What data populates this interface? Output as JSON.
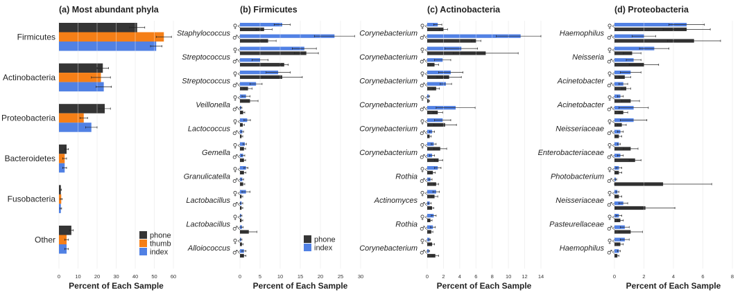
{
  "colors": {
    "phone": "#353535",
    "thumb": "#f57f17",
    "index": "#5181e4"
  },
  "sex_symbols": {
    "female": "♀",
    "male": "♂"
  },
  "chart_data": [
    {
      "type": "bar",
      "title": "(a) Most abundant phyla",
      "xlabel": "Percent of Each Sample",
      "xlim": [
        0,
        60
      ],
      "xticks": [
        0,
        10,
        20,
        30,
        40,
        50,
        60
      ],
      "legend": {
        "placement": "bottom-right",
        "entries": [
          "phone",
          "thumb",
          "index"
        ]
      },
      "grid": true,
      "categories": [
        "Firmicutes",
        "Actinobacteria",
        "Proteobacteria",
        "Bacteroidetes",
        "Fusobacteria",
        "Other"
      ],
      "series": [
        {
          "name": "phone",
          "values": [
            41,
            23,
            24,
            4,
            1,
            6.5
          ],
          "errors": [
            4,
            3,
            3,
            1,
            0.3,
            1
          ]
        },
        {
          "name": "thumb",
          "values": [
            55,
            22,
            13,
            3,
            1.2,
            4
          ],
          "errors": [
            4,
            5,
            2,
            1,
            0.5,
            1
          ]
        },
        {
          "name": "index",
          "values": [
            51,
            23.5,
            17,
            3,
            1,
            4
          ],
          "errors": [
            3,
            4,
            3,
            1,
            0.4,
            1
          ]
        }
      ]
    },
    {
      "type": "bar",
      "title": "(b) Firmicutes",
      "xlabel": "Percent of Each Sample",
      "xlim": [
        0,
        30
      ],
      "xticks": [
        0,
        5,
        10,
        15,
        20,
        25,
        30
      ],
      "legend": {
        "placement": "bottom-right",
        "entries": [
          "phone",
          "index"
        ]
      },
      "grid": true,
      "categories": [
        "Staphylococcus",
        "Streptococcus",
        "Streptococcus",
        "Veillonella",
        "Lactococcus",
        "Gemella",
        "Granulicatella",
        "Lactobacillus",
        "Lactobacillus",
        "Alloiococcus"
      ],
      "series": [
        {
          "name": "index (female)",
          "values": [
            10.5,
            16,
            9.5,
            1.5,
            1.8,
            1.2,
            1.5,
            1.5,
            0.3,
            0.3
          ],
          "errors": [
            2,
            3,
            3,
            1,
            0.8,
            0.4,
            0.5,
            1,
            0.2,
            0.2
          ]
        },
        {
          "name": "phone (female)",
          "values": [
            6,
            16.5,
            10.5,
            2.5,
            0.7,
            1,
            1,
            0.4,
            0.4,
            0.5
          ],
          "errors": [
            2,
            3,
            5,
            2,
            0.4,
            0.4,
            0.5,
            0.3,
            0.3,
            0.3
          ]
        },
        {
          "name": "index (male)",
          "values": [
            23.5,
            5,
            4,
            0.3,
            0.6,
            0.8,
            0.6,
            0.4,
            0.5,
            1
          ],
          "errors": [
            5,
            2,
            1.5,
            0.2,
            0.3,
            0.4,
            0.3,
            0.3,
            0.3,
            0.5
          ]
        },
        {
          "name": "phone (male)",
          "values": [
            7,
            11,
            2,
            0.8,
            0.4,
            1,
            0.8,
            0.4,
            2.2,
            1
          ],
          "errors": [
            2,
            1,
            1,
            0.4,
            0.3,
            0.4,
            0.4,
            0.3,
            2,
            0.5
          ]
        }
      ]
    },
    {
      "type": "bar",
      "title": "(c) Actinobacteria",
      "xlabel": "Percent of Each Sample",
      "xlim": [
        0,
        14
      ],
      "xticks": [
        0,
        2,
        4,
        6,
        8,
        10,
        12,
        14
      ],
      "grid": true,
      "categories": [
        "Corynebacterium",
        "Corynebacterium",
        "Corynebacterium",
        "Corynebacterium",
        "Corynebacterium",
        "Corynebacterium",
        "Rothia",
        "Actinomyces",
        "Rothia",
        "Corynebacterium"
      ],
      "series": [
        {
          "name": "index (female)",
          "values": [
            1.3,
            4.2,
            2.9,
            0.2,
            1.9,
            0.8,
            1.3,
            1.1,
            0.8,
            0.3
          ],
          "errors": [
            0.5,
            2,
            1.5,
            0.1,
            1,
            0.3,
            0.4,
            0.4,
            0.3,
            0.1
          ]
        },
        {
          "name": "phone (female)",
          "values": [
            2,
            7.2,
            2.7,
            0.2,
            2.2,
            1.6,
            0.7,
            0.9,
            0.4,
            0.6
          ],
          "errors": [
            0.5,
            4,
            1.5,
            0.1,
            1.4,
            0.8,
            0.3,
            0.4,
            0.2,
            0.3
          ]
        },
        {
          "name": "index (male)",
          "values": [
            11.5,
            1.9,
            2.3,
            3.5,
            0.6,
            0.6,
            0.4,
            0.3,
            0.7,
            0.2
          ],
          "errors": [
            3,
            1,
            0.7,
            2.4,
            0.3,
            0.3,
            0.2,
            0.2,
            0.3,
            0.1
          ]
        },
        {
          "name": "phone (male)",
          "values": [
            6,
            0.9,
            1.1,
            1.3,
            0.3,
            1.4,
            1.1,
            0.6,
            0.5,
            1
          ],
          "errors": [
            0.6,
            0.5,
            0.4,
            0.6,
            0.2,
            0.5,
            0.3,
            0.2,
            0.2,
            0.4
          ]
        }
      ]
    },
    {
      "type": "bar",
      "title": "(d) Proteobacteria",
      "xlabel": "Percent of Each Sample",
      "xlim": [
        0,
        8
      ],
      "xticks": [
        0,
        2,
        4,
        6,
        8
      ],
      "grid": true,
      "categories": [
        "Haemophilus",
        "Neisseria",
        "Acinetobacter",
        "Acinetobacter",
        "Neisseriaceae",
        "Enterobacteriaceae",
        "Photobacterium",
        "Neisseriaceae",
        "Pasteurellaceae",
        "Haemophilus"
      ],
      "series": [
        {
          "name": "index (female)",
          "values": [
            4.9,
            2.7,
            1.1,
            0.4,
            1.3,
            0.3,
            0.3,
            0.2,
            0.3,
            0.7
          ],
          "errors": [
            1.2,
            1,
            0.7,
            0.2,
            0.9,
            0.1,
            0.2,
            0.1,
            0.2,
            0.3
          ]
        },
        {
          "name": "phone (female)",
          "values": [
            4.9,
            1.2,
            0.7,
            1.1,
            0.5,
            1.1,
            0.3,
            0.3,
            0.4,
            0.4
          ],
          "errors": [
            1.6,
            0.6,
            0.4,
            0.6,
            0.3,
            0.5,
            0.2,
            0.2,
            0.2,
            0.2
          ]
        },
        {
          "name": "index (male)",
          "values": [
            2,
            1.3,
            0.6,
            1.3,
            0.4,
            0.4,
            0.1,
            0.6,
            0.7,
            0.3
          ],
          "errors": [
            0.8,
            0.5,
            0.3,
            1,
            0.2,
            0.2,
            0.05,
            0.3,
            0.3,
            0.1
          ]
        },
        {
          "name": "phone (male)",
          "values": [
            5.4,
            2,
            0.8,
            0.6,
            0.3,
            1.4,
            3.3,
            2.1,
            1.1,
            0.2
          ],
          "errors": [
            1.8,
            1,
            0.3,
            0.3,
            0.2,
            0.4,
            3.3,
            2,
            0.8,
            0.1
          ]
        }
      ]
    }
  ]
}
